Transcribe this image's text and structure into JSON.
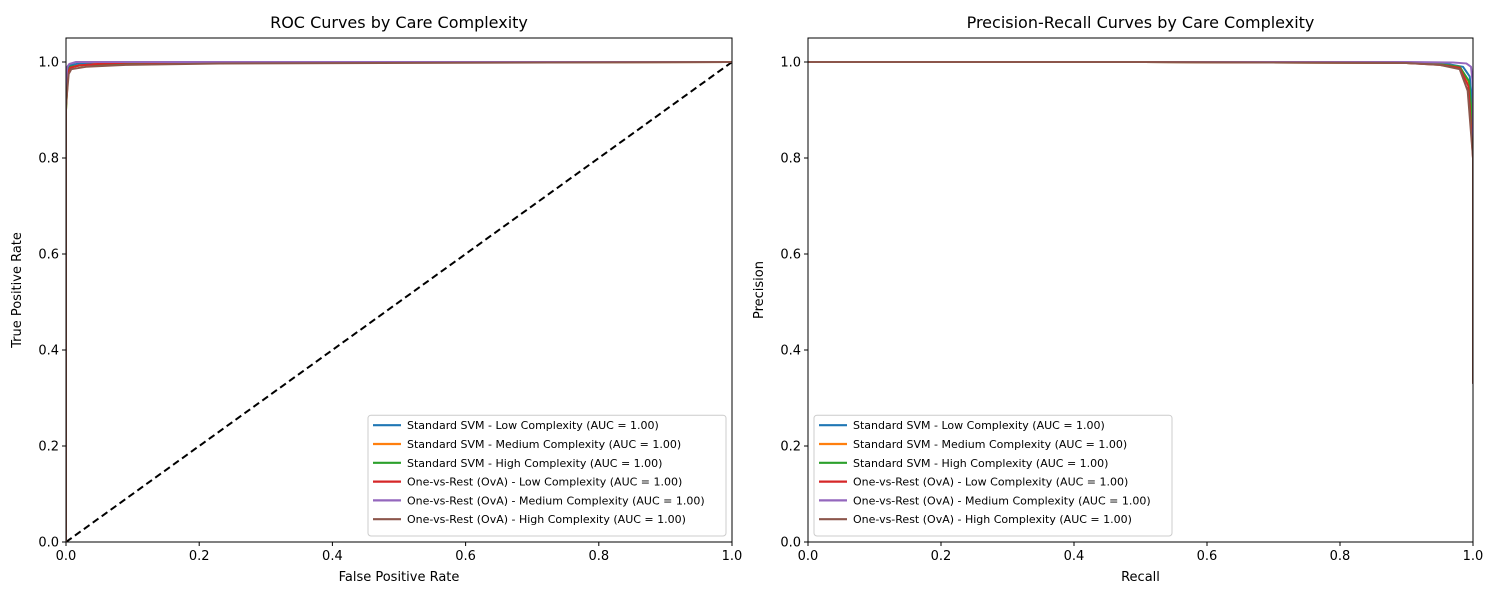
{
  "chart_data": [
    {
      "type": "line",
      "title": "ROC Curves by Care Complexity",
      "xlabel": "False Positive Rate",
      "ylabel": "True Positive Rate",
      "xlim": [
        0.0,
        1.0
      ],
      "ylim": [
        0.0,
        1.05
      ],
      "xticks": [
        "0.0",
        "0.2",
        "0.4",
        "0.6",
        "0.8",
        "1.0"
      ],
      "yticks": [
        "0.0",
        "0.2",
        "0.4",
        "0.6",
        "0.8",
        "1.0"
      ],
      "grid": false,
      "legend_position": "lower-right",
      "reference_line": {
        "x": [
          0,
          1
        ],
        "y": [
          0,
          1
        ],
        "color": "#000000",
        "style": "dashed"
      },
      "series": [
        {
          "name": "Standard SVM - Low Complexity (AUC = 1.00)",
          "color": "#1f77b4",
          "x": [
            0,
            0,
            0.002,
            0.005,
            0.02,
            0.05,
            0.1,
            1.0
          ],
          "y": [
            0,
            0.95,
            0.985,
            0.993,
            0.997,
            0.998,
            1.0,
            1.0
          ]
        },
        {
          "name": "Standard SVM - Medium Complexity (AUC = 1.00)",
          "color": "#ff7f0e",
          "x": [
            0,
            0,
            0.003,
            0.006,
            0.02,
            0.05,
            0.2,
            1.0
          ],
          "y": [
            0,
            0.9,
            0.975,
            0.988,
            0.993,
            0.996,
            0.999,
            1.0
          ]
        },
        {
          "name": "Standard SVM - High Complexity (AUC = 1.00)",
          "color": "#2ca02c",
          "x": [
            0,
            0,
            0.003,
            0.006,
            0.03,
            0.08,
            0.2,
            1.0
          ],
          "y": [
            0,
            0.9,
            0.98,
            0.99,
            0.994,
            0.996,
            0.999,
            1.0
          ]
        },
        {
          "name": "One-vs-Rest (OvA) - Low Complexity (AUC = 1.00)",
          "color": "#d62728",
          "x": [
            0,
            0,
            0.003,
            0.006,
            0.02,
            0.05,
            0.1,
            1.0
          ],
          "y": [
            0,
            0.91,
            0.975,
            0.988,
            0.993,
            0.996,
            0.999,
            1.0
          ]
        },
        {
          "name": "One-vs-Rest (OvA) - Medium Complexity (AUC = 1.00)",
          "color": "#9467bd",
          "x": [
            0,
            0,
            0.002,
            0.005,
            0.015,
            0.04,
            0.09,
            1.0
          ],
          "y": [
            0,
            0.96,
            0.99,
            0.996,
            1.0,
            1.0,
            1.0,
            1.0
          ]
        },
        {
          "name": "One-vs-Rest (OvA) - High Complexity (AUC = 1.00)",
          "color": "#8c564b",
          "x": [
            0,
            0,
            0.004,
            0.008,
            0.03,
            0.09,
            0.23,
            1.0
          ],
          "y": [
            0,
            0.91,
            0.975,
            0.985,
            0.99,
            0.994,
            0.997,
            1.0
          ]
        }
      ]
    },
    {
      "type": "line",
      "title": "Precision-Recall Curves by Care Complexity",
      "xlabel": "Recall",
      "ylabel": "Precision",
      "xlim": [
        0.0,
        1.0
      ],
      "ylim": [
        0.0,
        1.05
      ],
      "xticks": [
        "0.0",
        "0.2",
        "0.4",
        "0.6",
        "0.8",
        "1.0"
      ],
      "yticks": [
        "0.0",
        "0.2",
        "0.4",
        "0.6",
        "0.8",
        "1.0"
      ],
      "grid": false,
      "legend_position": "lower-left",
      "series": [
        {
          "name": "Standard SVM - Low Complexity (AUC = 1.00)",
          "color": "#1f77b4",
          "x": [
            0,
            0.5,
            0.9,
            0.96,
            0.985,
            0.995,
            1.0,
            1.0
          ],
          "y": [
            1.0,
            1.0,
            0.999,
            0.996,
            0.99,
            0.97,
            0.9,
            0.33
          ]
        },
        {
          "name": "Standard SVM - Medium Complexity (AUC = 1.00)",
          "color": "#ff7f0e",
          "x": [
            0,
            0.5,
            0.9,
            0.95,
            0.98,
            0.993,
            1.0,
            1.0
          ],
          "y": [
            1.0,
            1.0,
            0.998,
            0.995,
            0.99,
            0.96,
            0.85,
            0.34
          ]
        },
        {
          "name": "Standard SVM - High Complexity (AUC = 1.00)",
          "color": "#2ca02c",
          "x": [
            0,
            0.5,
            0.9,
            0.95,
            0.98,
            0.994,
            1.0,
            1.0
          ],
          "y": [
            1.0,
            1.0,
            0.998,
            0.995,
            0.99,
            0.96,
            0.86,
            0.33
          ]
        },
        {
          "name": "One-vs-Rest (OvA) - Low Complexity (AUC = 1.00)",
          "color": "#d62728",
          "x": [
            0,
            0.5,
            0.9,
            0.95,
            0.98,
            0.993,
            1.0,
            1.0
          ],
          "y": [
            1.0,
            1.0,
            0.998,
            0.994,
            0.988,
            0.95,
            0.8,
            0.33
          ]
        },
        {
          "name": "One-vs-Rest (OvA) - Medium Complexity (AUC = 1.00)",
          "color": "#9467bd",
          "x": [
            0,
            0.5,
            0.9,
            0.97,
            0.99,
            0.997,
            1.0,
            1.0
          ],
          "y": [
            1.0,
            1.0,
            1.0,
            0.999,
            0.997,
            0.99,
            0.95,
            0.33
          ]
        },
        {
          "name": "One-vs-Rest (OvA) - High Complexity (AUC = 1.00)",
          "color": "#8c564b",
          "x": [
            0,
            0.5,
            0.9,
            0.95,
            0.98,
            0.992,
            1.0,
            1.0
          ],
          "y": [
            1.0,
            1.0,
            0.998,
            0.994,
            0.985,
            0.94,
            0.8,
            0.33
          ]
        }
      ]
    }
  ]
}
